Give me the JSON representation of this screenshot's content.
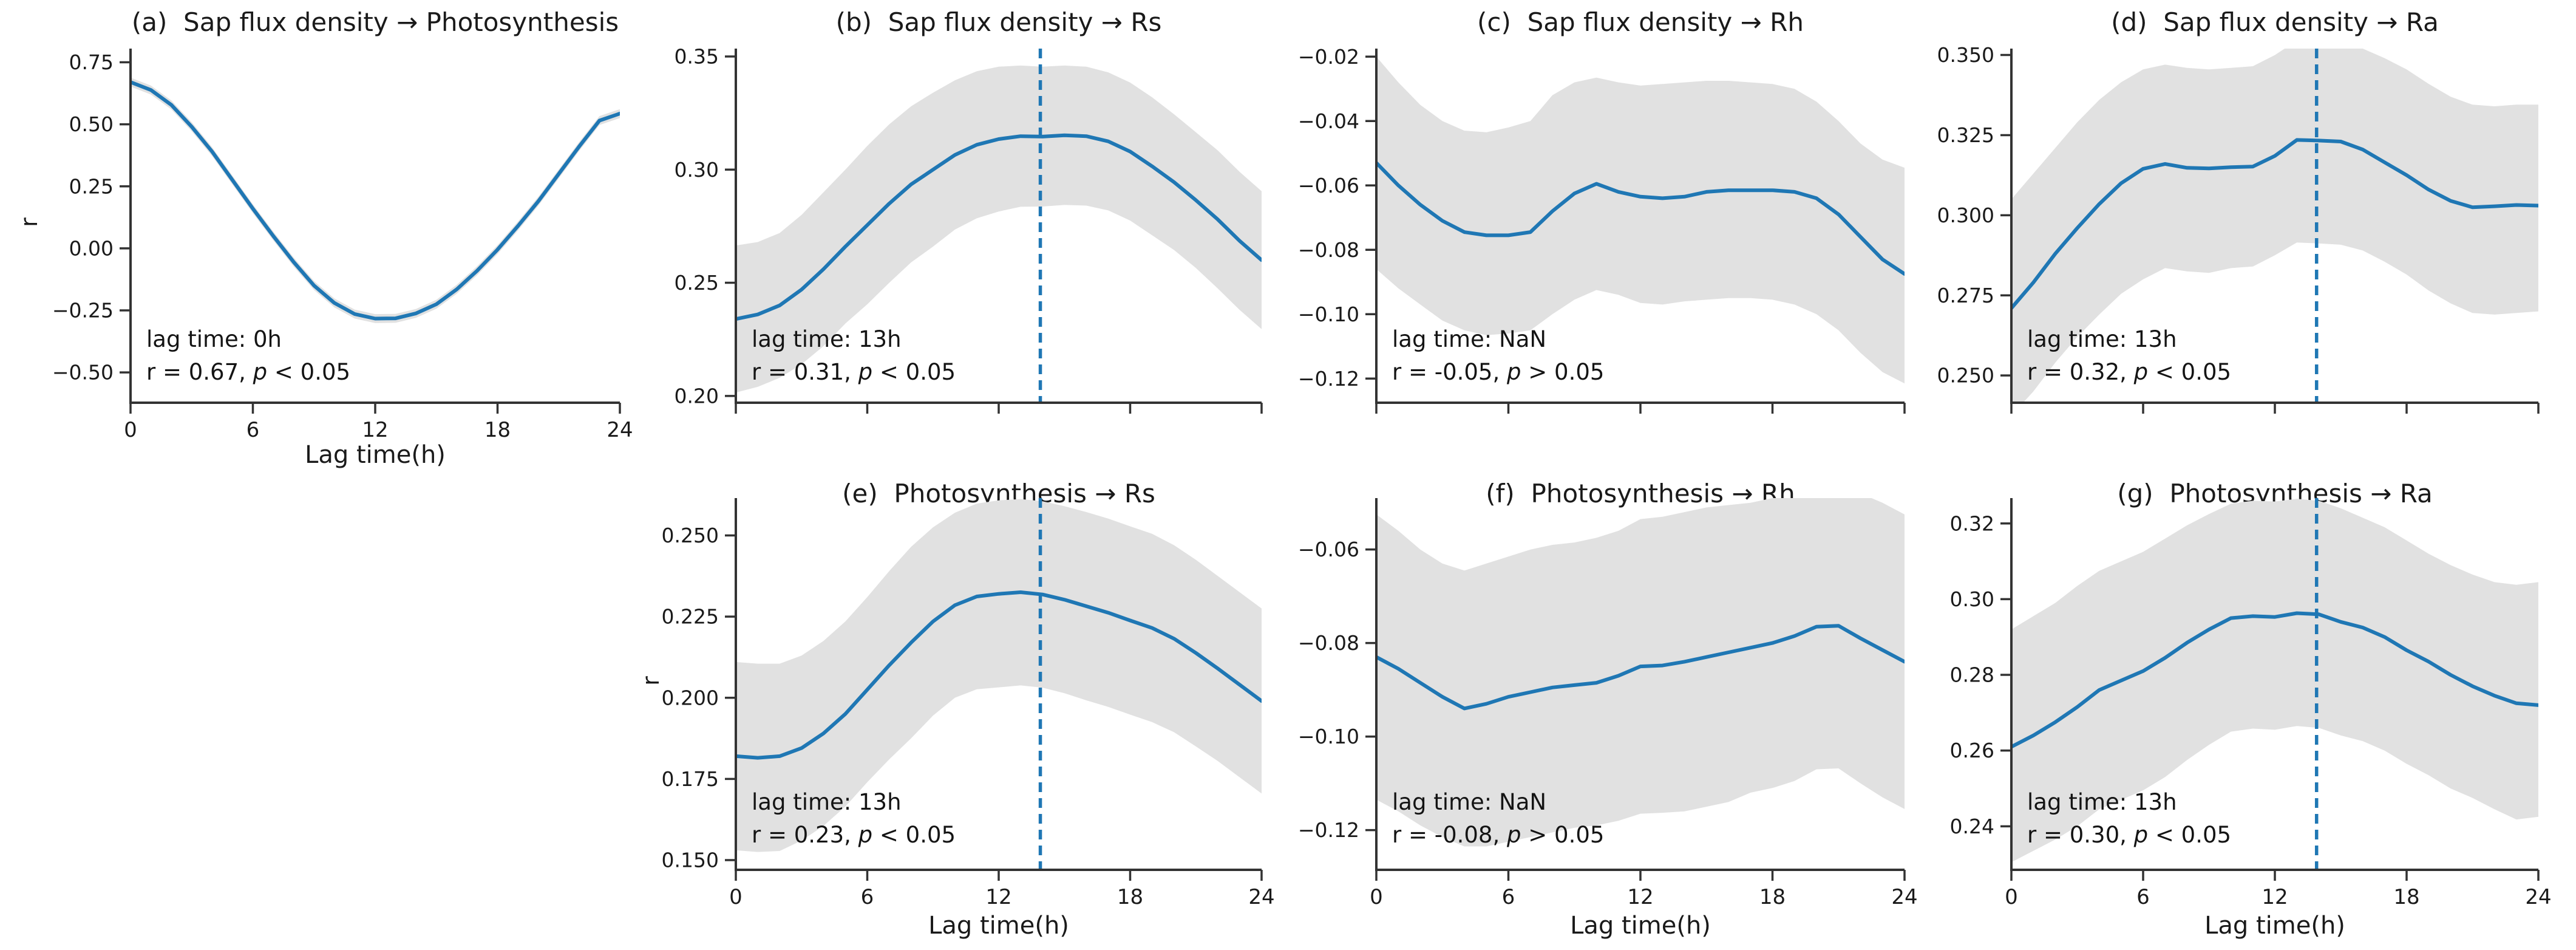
{
  "figure": {
    "background": "#ffffff",
    "description": "Seven-panel lagged-correlation figure"
  },
  "chart_data": {
    "type": "line",
    "x": [
      0,
      1,
      2,
      3,
      4,
      5,
      6,
      7,
      8,
      9,
      10,
      11,
      12,
      13,
      14,
      15,
      16,
      17,
      18,
      19,
      20,
      21,
      22,
      23,
      24
    ],
    "colors": {
      "line": "#1f77b4",
      "dashed": "#1f77b4",
      "band": "#e1e1e1",
      "text": "#1a1a1a",
      "spine": "#333333"
    },
    "legend": "none",
    "grid": false,
    "panels": [
      {
        "id": "a",
        "title": "(a)  Sap flux density → Photosynthesis",
        "xlabel": "Lag time(h)",
        "ylabel": "r",
        "xlim": [
          0,
          24
        ],
        "ylim": [
          -0.622,
          0.805
        ],
        "xticks": [
          0,
          6,
          12,
          18,
          24
        ],
        "xtick_labels": [
          "0",
          "6",
          "12",
          "18",
          "24"
        ],
        "show_xtick_labels": true,
        "ytick_values": [
          0.75,
          0.5,
          0.25,
          0.0,
          -0.25,
          -0.5
        ],
        "ytick_labels": [
          "0.75",
          "0.50",
          "0.25",
          "0.00",
          "−0.25",
          "−0.50"
        ],
        "lag_line_x": null,
        "y": [
          0.67,
          0.638,
          0.578,
          0.49,
          0.39,
          0.275,
          0.16,
          0.05,
          -0.055,
          -0.15,
          -0.22,
          -0.265,
          -0.283,
          -0.282,
          -0.262,
          -0.225,
          -0.165,
          -0.09,
          -0.005,
          0.09,
          0.19,
          0.3,
          0.41,
          0.515,
          0.543
        ],
        "band_upper": [
          0.688,
          0.656,
          0.596,
          0.508,
          0.408,
          0.293,
          0.178,
          0.068,
          -0.037,
          -0.132,
          -0.202,
          -0.247,
          -0.265,
          -0.264,
          -0.244,
          -0.207,
          -0.147,
          -0.072,
          0.013,
          0.108,
          0.208,
          0.318,
          0.428,
          0.533,
          0.561
        ],
        "band_lower": [
          0.652,
          0.62,
          0.56,
          0.472,
          0.372,
          0.257,
          0.142,
          0.032,
          -0.073,
          -0.168,
          -0.238,
          -0.283,
          -0.301,
          -0.3,
          -0.28,
          -0.243,
          -0.183,
          -0.108,
          -0.023,
          0.072,
          0.172,
          0.282,
          0.392,
          0.497,
          0.525
        ],
        "annotation": {
          "lag": "lag time: 0h",
          "r": "r = 0.67, ",
          "p": "p",
          "cond": " < 0.05"
        }
      },
      {
        "id": "b",
        "title": "(b)  Sap flux density → Rs",
        "xlim": [
          0,
          24
        ],
        "ylim": [
          0.197,
          0.3535
        ],
        "xticks": [
          0,
          6,
          12,
          18,
          24
        ],
        "show_xtick_labels": false,
        "ytick_values": [
          0.35,
          0.3,
          0.25,
          0.2
        ],
        "ytick_labels": [
          "0.35",
          "0.30",
          "0.25",
          "0.20"
        ],
        "lag_line_x": 13,
        "y": [
          0.234,
          0.236,
          0.24,
          0.247,
          0.256,
          0.266,
          0.2755,
          0.285,
          0.2935,
          0.3,
          0.3065,
          0.311,
          0.3135,
          0.3148,
          0.3146,
          0.3152,
          0.3148,
          0.3125,
          0.308,
          0.3015,
          0.2945,
          0.2865,
          0.278,
          0.2685,
          0.26
        ],
        "band_upper": [
          0.2665,
          0.268,
          0.272,
          0.28,
          0.29,
          0.3,
          0.3105,
          0.32,
          0.328,
          0.334,
          0.3395,
          0.3435,
          0.3455,
          0.346,
          0.3455,
          0.346,
          0.3455,
          0.343,
          0.3385,
          0.332,
          0.3245,
          0.3165,
          0.3085,
          0.299,
          0.2905
        ],
        "band_lower": [
          0.2015,
          0.204,
          0.208,
          0.214,
          0.222,
          0.232,
          0.2405,
          0.25,
          0.259,
          0.266,
          0.2735,
          0.2785,
          0.2815,
          0.2836,
          0.2837,
          0.2844,
          0.2841,
          0.282,
          0.2775,
          0.271,
          0.2645,
          0.2565,
          0.2475,
          0.238,
          0.2295
        ],
        "annotation": {
          "lag": "lag time: 13h",
          "r": "r = 0.31, ",
          "p": "p",
          "cond": " < 0.05"
        }
      },
      {
        "id": "c",
        "title": "(c)  Sap flux density → Rh",
        "xlim": [
          0,
          24
        ],
        "ylim": [
          -0.1275,
          -0.0175
        ],
        "xticks": [
          0,
          6,
          12,
          18,
          24
        ],
        "show_xtick_labels": false,
        "ytick_values": [
          -0.02,
          -0.04,
          -0.06,
          -0.08,
          -0.1,
          -0.12
        ],
        "ytick_labels": [
          "−0.02",
          "−0.04",
          "−0.06",
          "−0.08",
          "−0.10",
          "−0.12"
        ],
        "lag_line_x": null,
        "y": [
          -0.053,
          -0.06,
          -0.066,
          -0.071,
          -0.0745,
          -0.0755,
          -0.0755,
          -0.0745,
          -0.068,
          -0.0625,
          -0.0595,
          -0.062,
          -0.0635,
          -0.064,
          -0.0635,
          -0.062,
          -0.0615,
          -0.0615,
          -0.0615,
          -0.062,
          -0.064,
          -0.069,
          -0.076,
          -0.083,
          -0.0875
        ],
        "band_upper": [
          -0.02,
          -0.028,
          -0.035,
          -0.04,
          -0.043,
          -0.0435,
          -0.042,
          -0.04,
          -0.032,
          -0.028,
          -0.0265,
          -0.028,
          -0.029,
          -0.0285,
          -0.028,
          -0.0275,
          -0.0275,
          -0.028,
          -0.0285,
          -0.03,
          -0.034,
          -0.04,
          -0.047,
          -0.052,
          -0.0545
        ],
        "band_lower": [
          -0.086,
          -0.092,
          -0.097,
          -0.102,
          -0.105,
          -0.1065,
          -0.106,
          -0.105,
          -0.1,
          -0.0955,
          -0.0925,
          -0.094,
          -0.0965,
          -0.097,
          -0.096,
          -0.0955,
          -0.095,
          -0.095,
          -0.0955,
          -0.097,
          -0.1,
          -0.105,
          -0.112,
          -0.118,
          -0.1215
        ],
        "annotation": {
          "lag": "lag time: NaN",
          "r": "r = -0.05, ",
          "p": "p",
          "cond": " > 0.05"
        }
      },
      {
        "id": "d",
        "title": "(d)  Sap flux density → Ra",
        "xlim": [
          0,
          24
        ],
        "ylim": [
          0.2415,
          0.352
        ],
        "xticks": [
          0,
          6,
          12,
          18,
          24
        ],
        "show_xtick_labels": false,
        "ytick_values": [
          0.35,
          0.325,
          0.3,
          0.275,
          0.25
        ],
        "ytick_labels": [
          "0.350",
          "0.325",
          "0.300",
          "0.275",
          "0.250"
        ],
        "lag_line_x": 13,
        "y": [
          0.271,
          0.279,
          0.288,
          0.296,
          0.3035,
          0.31,
          0.3145,
          0.316,
          0.3148,
          0.3146,
          0.315,
          0.3152,
          0.3185,
          0.3235,
          0.3233,
          0.323,
          0.3205,
          0.3165,
          0.3125,
          0.308,
          0.3045,
          0.3025,
          0.3028,
          0.3032,
          0.303
        ],
        "band_upper": [
          0.305,
          0.313,
          0.321,
          0.329,
          0.336,
          0.3415,
          0.3455,
          0.347,
          0.346,
          0.3455,
          0.346,
          0.3465,
          0.35,
          0.3545,
          0.3545,
          0.354,
          0.352,
          0.349,
          0.3455,
          0.341,
          0.337,
          0.3345,
          0.334,
          0.3345,
          0.3345
        ],
        "band_lower": [
          0.2375,
          0.245,
          0.254,
          0.262,
          0.269,
          0.2755,
          0.28,
          0.2835,
          0.2825,
          0.282,
          0.2835,
          0.284,
          0.2875,
          0.2915,
          0.2912,
          0.2908,
          0.289,
          0.2855,
          0.2815,
          0.2765,
          0.2725,
          0.2695,
          0.269,
          0.2695,
          0.27
        ],
        "annotation": {
          "lag": "lag time: 13h",
          "r": "r = 0.32, ",
          "p": "p",
          "cond": " < 0.05"
        }
      },
      {
        "id": "e",
        "title": "(e)  Photosynthesis → Rs",
        "xlabel": "Lag time(h)",
        "ylabel": "r",
        "xlim": [
          0,
          24
        ],
        "ylim": [
          0.147,
          0.2615
        ],
        "xticks": [
          0,
          6,
          12,
          18,
          24
        ],
        "xtick_labels": [
          "0",
          "6",
          "12",
          "18",
          "24"
        ],
        "show_xtick_labels": true,
        "ytick_values": [
          0.25,
          0.225,
          0.2,
          0.175,
          0.15
        ],
        "ytick_labels": [
          "0.250",
          "0.225",
          "0.200",
          "0.175",
          "0.150"
        ],
        "lag_line_x": 13,
        "y": [
          0.182,
          0.1815,
          0.182,
          0.1845,
          0.189,
          0.195,
          0.2025,
          0.21,
          0.217,
          0.2235,
          0.2285,
          0.2312,
          0.232,
          0.2325,
          0.2318,
          0.2302,
          0.2282,
          0.2262,
          0.2238,
          0.2215,
          0.2182,
          0.2138,
          0.209,
          0.204,
          0.199
        ],
        "band_upper": [
          0.211,
          0.2105,
          0.2105,
          0.213,
          0.2175,
          0.2235,
          0.231,
          0.239,
          0.2465,
          0.2525,
          0.257,
          0.2598,
          0.2608,
          0.2612,
          0.2605,
          0.259,
          0.2572,
          0.2552,
          0.2528,
          0.2505,
          0.247,
          0.2425,
          0.2375,
          0.2325,
          0.2275
        ],
        "band_lower": [
          0.153,
          0.1525,
          0.1528,
          0.156,
          0.1605,
          0.1665,
          0.174,
          0.181,
          0.1875,
          0.1945,
          0.2,
          0.2026,
          0.2032,
          0.2038,
          0.2031,
          0.2014,
          0.1992,
          0.1972,
          0.1948,
          0.1925,
          0.1894,
          0.185,
          0.1805,
          0.1755,
          0.1705
        ],
        "annotation": {
          "lag": "lag time: 13h",
          "r": "r = 0.23, ",
          "p": "p",
          "cond": " < 0.05"
        }
      },
      {
        "id": "f",
        "title": "(f)  Photosynthesis → Rh",
        "xlabel": "Lag time(h)",
        "xlim": [
          0,
          24
        ],
        "ylim": [
          -0.1285,
          -0.049
        ],
        "xticks": [
          0,
          6,
          12,
          18,
          24
        ],
        "xtick_labels": [
          "0",
          "6",
          "12",
          "18",
          "24"
        ],
        "show_xtick_labels": true,
        "ytick_values": [
          -0.06,
          -0.08,
          -0.1,
          -0.12
        ],
        "ytick_labels": [
          "−0.06",
          "−0.08",
          "−0.10",
          "−0.12"
        ],
        "lag_line_x": null,
        "y": [
          -0.083,
          -0.0855,
          -0.0885,
          -0.0915,
          -0.094,
          -0.093,
          -0.0915,
          -0.0905,
          -0.0895,
          -0.089,
          -0.0885,
          -0.087,
          -0.085,
          -0.0848,
          -0.084,
          -0.083,
          -0.082,
          -0.081,
          -0.08,
          -0.0785,
          -0.0765,
          -0.0763,
          -0.079,
          -0.0815,
          -0.084
        ],
        "band_upper": [
          -0.0525,
          -0.056,
          -0.06,
          -0.063,
          -0.0645,
          -0.063,
          -0.0615,
          -0.06,
          -0.059,
          -0.0585,
          -0.0575,
          -0.056,
          -0.0535,
          -0.053,
          -0.052,
          -0.051,
          -0.0505,
          -0.05,
          -0.049,
          -0.0475,
          -0.046,
          -0.046,
          -0.048,
          -0.05,
          -0.0525
        ],
        "band_lower": [
          -0.1135,
          -0.116,
          -0.119,
          -0.1215,
          -0.1235,
          -0.1235,
          -0.1225,
          -0.1215,
          -0.1205,
          -0.1195,
          -0.119,
          -0.118,
          -0.1165,
          -0.1163,
          -0.116,
          -0.115,
          -0.114,
          -0.112,
          -0.111,
          -0.1095,
          -0.107,
          -0.1068,
          -0.11,
          -0.113,
          -0.1155
        ],
        "annotation": {
          "lag": "lag time: NaN",
          "r": "r = -0.08, ",
          "p": "p",
          "cond": " > 0.05"
        }
      },
      {
        "id": "g",
        "title": "(g)  Photosynthesis → Ra",
        "xlabel": "Lag time(h)",
        "xlim": [
          0,
          24
        ],
        "ylim": [
          0.2285,
          0.3267
        ],
        "xticks": [
          0,
          6,
          12,
          18,
          24
        ],
        "xtick_labels": [
          "0",
          "6",
          "12",
          "18",
          "24"
        ],
        "show_xtick_labels": true,
        "ytick_values": [
          0.32,
          0.3,
          0.28,
          0.26,
          0.24
        ],
        "ytick_labels": [
          "0.32",
          "0.30",
          "0.28",
          "0.26",
          "0.24"
        ],
        "lag_line_x": 13,
        "y": [
          0.261,
          0.264,
          0.2675,
          0.2715,
          0.276,
          0.2785,
          0.281,
          0.2845,
          0.2885,
          0.292,
          0.295,
          0.2955,
          0.2953,
          0.2963,
          0.296,
          0.294,
          0.2925,
          0.29,
          0.2865,
          0.2835,
          0.28,
          0.277,
          0.2745,
          0.2725,
          0.272
        ],
        "band_upper": [
          0.292,
          0.2955,
          0.299,
          0.3035,
          0.3075,
          0.31,
          0.3125,
          0.316,
          0.3195,
          0.3225,
          0.3252,
          0.326,
          0.3258,
          0.3265,
          0.326,
          0.324,
          0.3215,
          0.319,
          0.3155,
          0.312,
          0.309,
          0.3065,
          0.3045,
          0.3038,
          0.3045
        ],
        "band_lower": [
          0.2305,
          0.2335,
          0.2365,
          0.24,
          0.2445,
          0.247,
          0.2495,
          0.253,
          0.2575,
          0.2615,
          0.265,
          0.2658,
          0.2655,
          0.2665,
          0.266,
          0.264,
          0.2625,
          0.26,
          0.2565,
          0.2535,
          0.25,
          0.2475,
          0.2445,
          0.2418,
          0.2425
        ],
        "annotation": {
          "lag": "lag time: 13h",
          "r": "r = 0.30, ",
          "p": "p",
          "cond": " < 0.05"
        }
      }
    ]
  }
}
